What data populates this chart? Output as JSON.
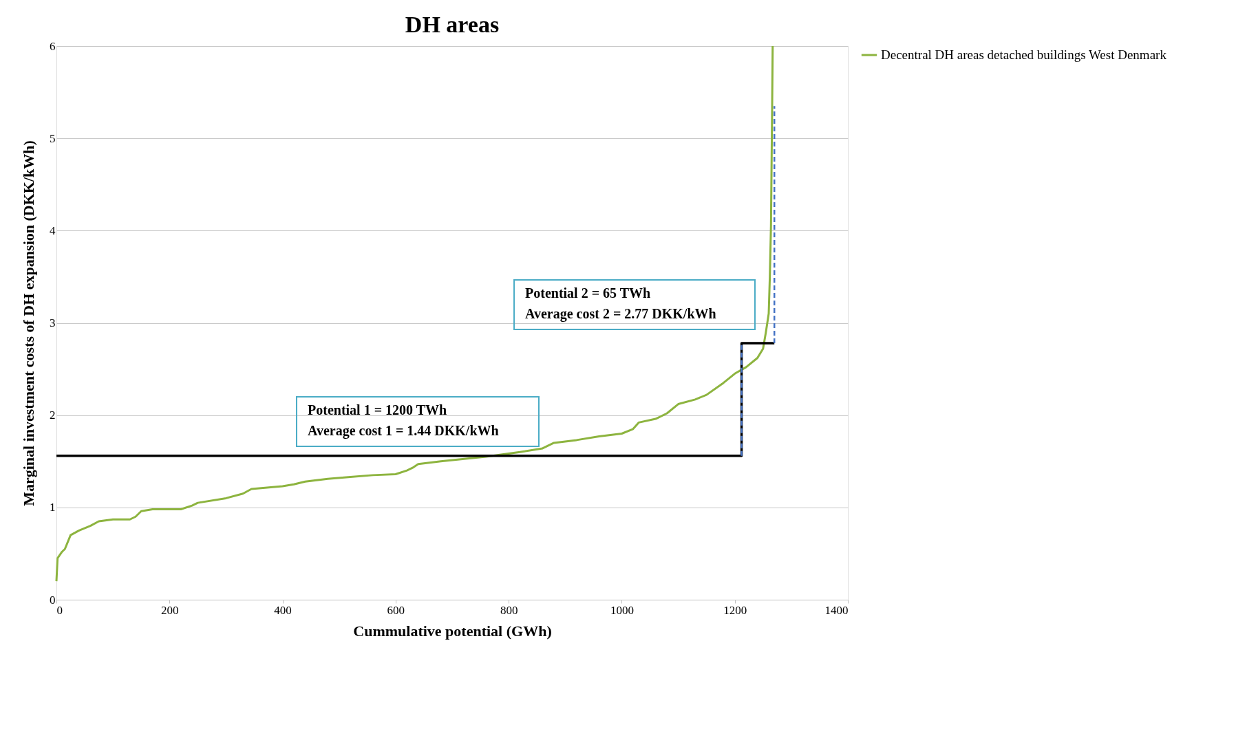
{
  "chart_data": {
    "type": "line",
    "title": "DH areas",
    "xlabel": "Cummulative potential (GWh)",
    "ylabel": "Marginal investment costs of DH expansion (DKK/kWh)",
    "xlim": [
      0,
      1400
    ],
    "xticks": [
      0,
      200,
      400,
      600,
      800,
      1000,
      1200,
      1400
    ],
    "ylim": [
      0,
      6
    ],
    "yticks": [
      0,
      1,
      2,
      3,
      4,
      5,
      6
    ],
    "grid": "y",
    "legend": "right",
    "series": [
      {
        "name": "Decentral DH areas detached buildings West Denmark",
        "color": "#8db43f",
        "x": [
          0,
          2,
          10,
          15,
          25,
          40,
          60,
          75,
          100,
          130,
          140,
          150,
          170,
          220,
          240,
          250,
          300,
          330,
          345,
          400,
          420,
          440,
          480,
          520,
          560,
          600,
          620,
          630,
          640,
          680,
          760,
          820,
          860,
          880,
          920,
          960,
          1000,
          1020,
          1030,
          1060,
          1080,
          1100,
          1130,
          1150,
          1180,
          1200,
          1220,
          1240,
          1250,
          1255,
          1260,
          1262,
          1264,
          1266,
          1267
        ],
        "values": [
          0.2,
          0.45,
          0.52,
          0.55,
          0.7,
          0.75,
          0.8,
          0.85,
          0.87,
          0.87,
          0.9,
          0.96,
          0.98,
          0.98,
          1.02,
          1.05,
          1.1,
          1.15,
          1.2,
          1.23,
          1.25,
          1.28,
          1.31,
          1.33,
          1.35,
          1.36,
          1.4,
          1.43,
          1.47,
          1.5,
          1.55,
          1.6,
          1.64,
          1.7,
          1.73,
          1.77,
          1.8,
          1.85,
          1.92,
          1.96,
          2.02,
          2.12,
          2.17,
          2.22,
          2.35,
          2.45,
          2.52,
          2.62,
          2.72,
          2.9,
          3.1,
          3.5,
          4.05,
          5.3,
          6.0
        ]
      },
      {
        "color": "#000000",
        "x": [
          0,
          1212,
          1212,
          1270
        ],
        "values": [
          1.56,
          1.56,
          2.78,
          2.78
        ]
      },
      {
        "color": "#4472c4",
        "line_style": "dashed",
        "x": [
          1212,
          1212
        ],
        "values": [
          1.56,
          2.78
        ]
      },
      {
        "color": "#4472c4",
        "line_style": "dashed",
        "x": [
          1270,
          1270
        ],
        "values": [
          2.78,
          5.35
        ]
      }
    ],
    "annotations": [
      "Potential 1 = 1200 TWh\nAverage cost 1 = 1.44 DKK/kWh",
      "Potential 2 = 65 TWh\nAverage cost 2 = 2.77 DKK/kWh"
    ]
  }
}
